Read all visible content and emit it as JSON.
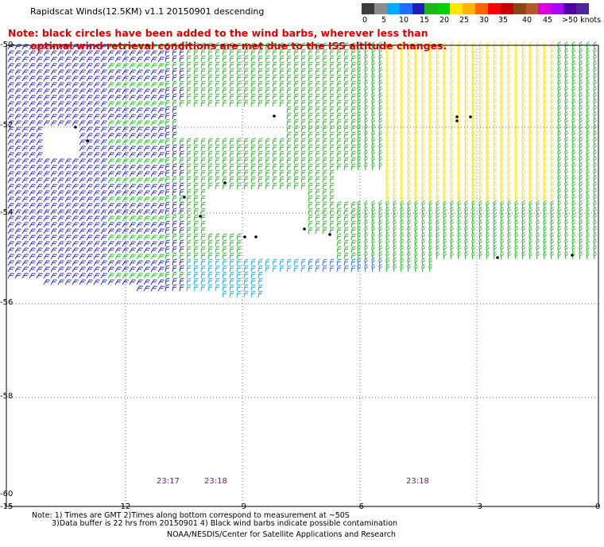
{
  "header": {
    "title": "Rapidscat Winds(12.5KM) v1.1 20150901 descending"
  },
  "notice": {
    "line1": "Note: black circles have been added to the wind barbs, wherever less than",
    "line2": "optimal wind retrieval conditions are met due to the ISS altitude changes."
  },
  "legend": {
    "colors": [
      "#3c3c3c",
      "#8c8c8c",
      "#00aaff",
      "#1e6eff",
      "#1e1eb4",
      "#1eb41e",
      "#00d200",
      "#ffe600",
      "#ffb400",
      "#ff6400",
      "#ff0000",
      "#c80000",
      "#8c4614",
      "#b45a28",
      "#dc00dc",
      "#aa00ff",
      "#5000a0",
      "#4b2896"
    ],
    "labels": [
      "0",
      "5",
      "10",
      "15",
      "20",
      "25",
      "30",
      "35",
      "40",
      "45",
      ">50 knots"
    ]
  },
  "axes": {
    "lat_labels": [
      "-50",
      "-52",
      "-54",
      "-56",
      "-58",
      "-60"
    ],
    "lon_labels": [
      "-15",
      "-12",
      "-9",
      "-6",
      "-3",
      "0"
    ]
  },
  "pass_times": [
    "23:17",
    "23:18",
    "23:18"
  ],
  "footer": {
    "line1": "Note: 1) Times are GMT 2)Times along bottom correspond to measurement at ~50S",
    "line2": "3)Data buffer is 22 hrs from 20150901 4) Black wind barbs indicate possible contamination",
    "credit": "NOAA/NESDIS/Center for Satellite Applications and Research"
  }
}
